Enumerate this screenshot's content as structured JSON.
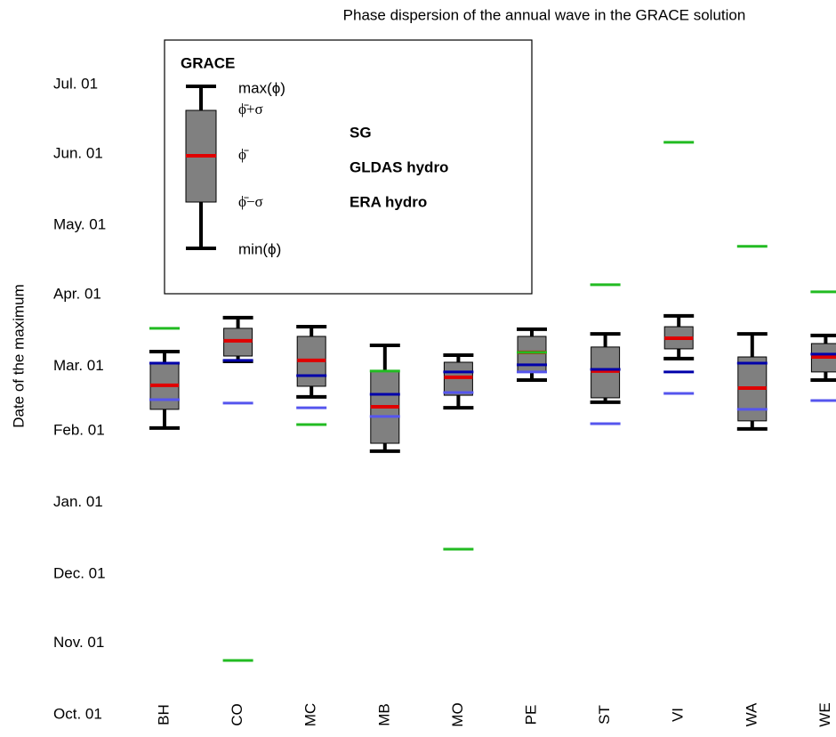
{
  "chart_data": {
    "type": "box",
    "title": "Phase dispersion of the annual wave in the GRACE solution",
    "y_label": "Date of the maximum",
    "categories": [
      "BH",
      "CO",
      "MC",
      "MB",
      "MO",
      "PE",
      "ST",
      "VI",
      "WA",
      "WE"
    ],
    "ylim": [
      0,
      273
    ],
    "yticks": [
      {
        "value": 0,
        "label": "Oct. 01"
      },
      {
        "value": 31,
        "label": "Nov. 01"
      },
      {
        "value": 61,
        "label": "Dec. 01"
      },
      {
        "value": 92,
        "label": "Jan. 01"
      },
      {
        "value": 123,
        "label": "Feb. 01"
      },
      {
        "value": 151,
        "label": "Mar. 01"
      },
      {
        "value": 182,
        "label": "Apr. 01"
      },
      {
        "value": 212,
        "label": "May. 01"
      },
      {
        "value": 243,
        "label": "Jun. 01"
      },
      {
        "value": 273,
        "label": "Jul. 01"
      }
    ],
    "boxes": {
      "name": "GRACE",
      "color": "#808080",
      "median_color": "#e00000",
      "max": [
        157.3,
        172,
        168.1,
        160,
        155.8,
        167,
        165,
        172.8,
        165,
        164.3
      ],
      "upper": [
        152.7,
        167.4,
        163.9,
        148.9,
        152.7,
        163.9,
        159.3,
        168.1,
        155,
        160.8
      ],
      "median": [
        142.7,
        162,
        153.5,
        133.4,
        146.2,
        157,
        148.9,
        163.1,
        141.5,
        155
      ],
      "lower": [
        132.3,
        155.4,
        142.3,
        117.6,
        138.4,
        148.5,
        137.3,
        158.5,
        127.3,
        148.5
      ],
      "min": [
        124.2,
        153.1,
        137.7,
        114.2,
        133,
        145,
        135.4,
        154.3,
        123.8,
        145
      ]
    },
    "legend_labels": {
      "max": "max(ϕ)",
      "upper": "ϕ̄+σ",
      "median": "ϕ̄",
      "lower": "ϕ̄−σ",
      "min": "min(ϕ)"
    },
    "series": [
      {
        "name": "SG",
        "color": "#22bb22",
        "values": [
          167.4,
          23.5,
          125.7,
          148.9,
          71.7,
          157,
          186.3,
          248,
          202.9,
          183.2
        ]
      },
      {
        "name": "GLDAS hydro",
        "color": "#0000aa",
        "values": [
          152.3,
          153.5,
          146.9,
          138.8,
          148.5,
          151.6,
          149.6,
          148.5,
          152.3,
          156.2
        ]
      },
      {
        "name": "ERA hydro",
        "color": "#5555ee",
        "values": [
          136.5,
          135,
          133,
          129.2,
          139.6,
          148.5,
          126.1,
          139.2,
          132.3,
          136.1
        ]
      }
    ]
  }
}
